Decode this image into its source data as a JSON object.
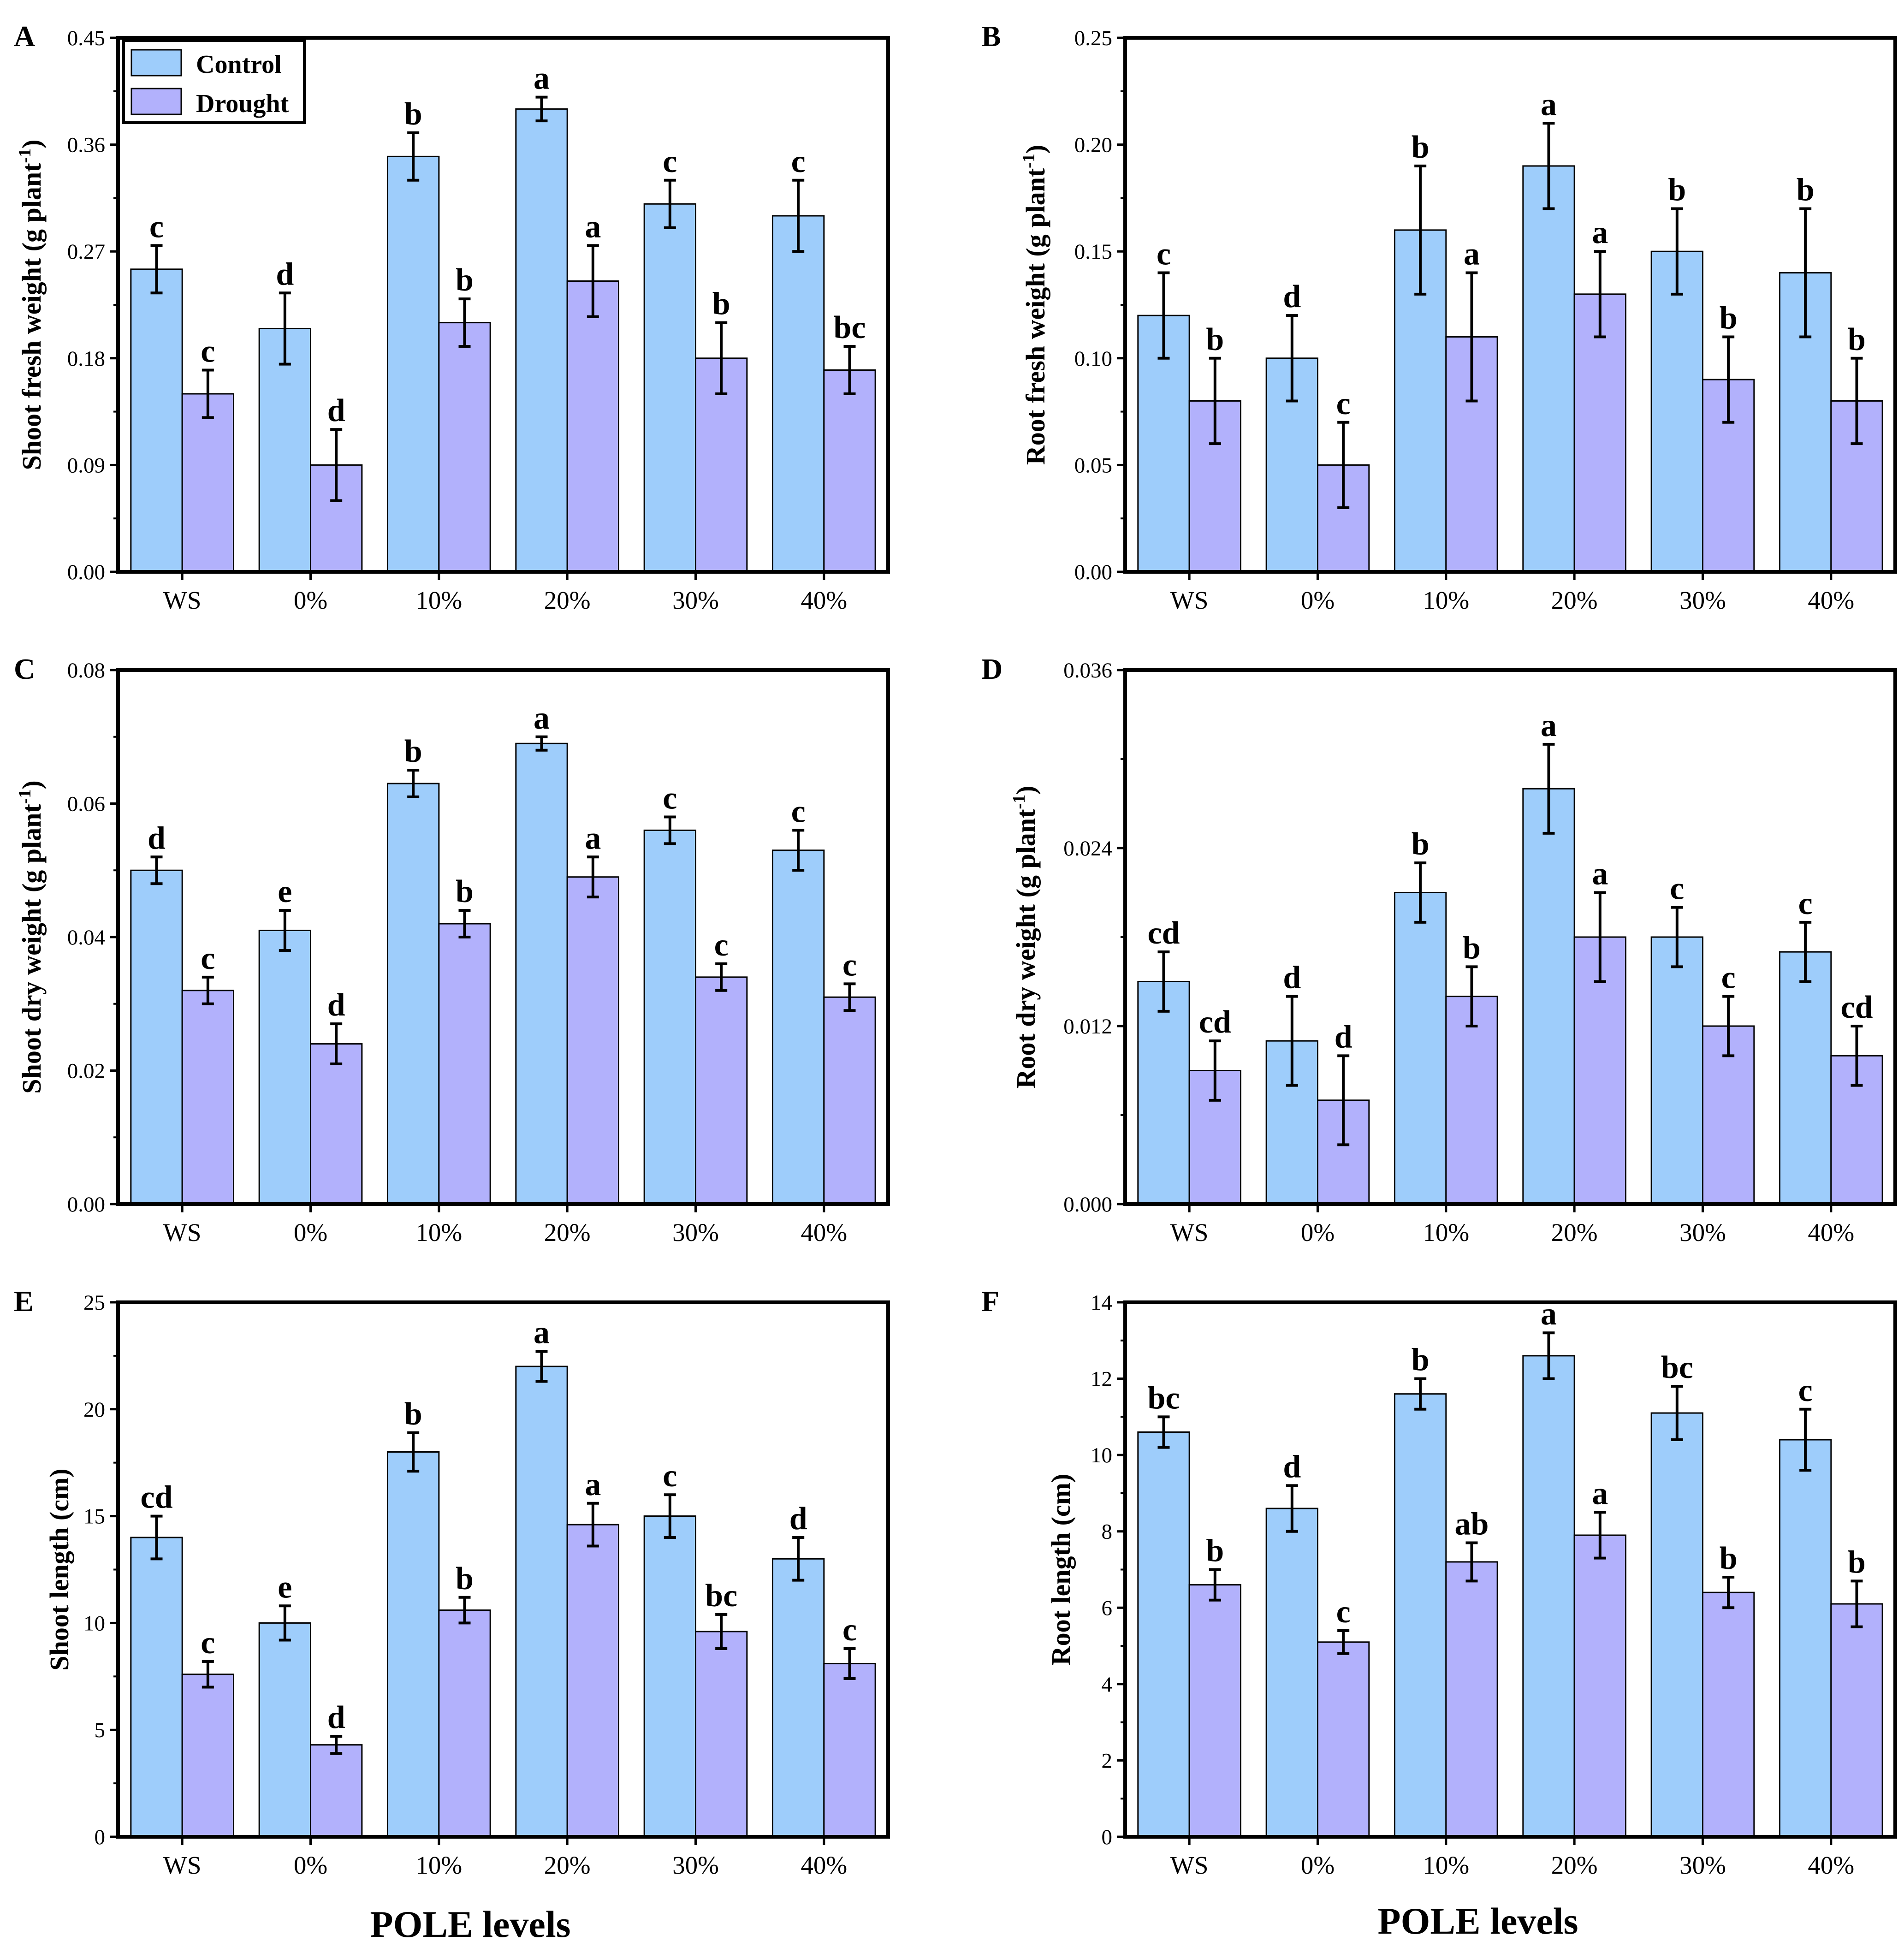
{
  "colors": {
    "control": "#9ecdfb",
    "drought": "#b2b1fc",
    "axis": "#000000"
  },
  "legend": {
    "control_label": "Control",
    "drought_label": "Drought"
  },
  "x_axis_title": "POLE levels",
  "chart_data": [
    {
      "panel": "A",
      "type": "bar",
      "title": "",
      "ylabel": "Shoot fresh weight (g plant-1)",
      "ylabel_parts": [
        "Shoot fresh weight (g plant",
        "-1",
        ")"
      ],
      "xlabel": "",
      "categories": [
        "WS",
        "0%",
        "10%",
        "20%",
        "30%",
        "40%"
      ],
      "ylim": [
        0,
        0.45
      ],
      "yticks": [
        "0.00",
        "0.09",
        "0.18",
        "0.27",
        "0.36",
        "0.45"
      ],
      "series": [
        {
          "name": "Control",
          "values": [
            0.255,
            0.205,
            0.35,
            0.39,
            0.31,
            0.3
          ],
          "errors": [
            0.02,
            0.03,
            0.02,
            0.01,
            0.02,
            0.03
          ],
          "letters": [
            "c",
            "d",
            "b",
            "a",
            "c",
            "c"
          ]
        },
        {
          "name": "Drought",
          "values": [
            0.15,
            0.09,
            0.21,
            0.245,
            0.18,
            0.17
          ],
          "errors": [
            0.02,
            0.03,
            0.02,
            0.03,
            0.03,
            0.02
          ],
          "letters": [
            "c",
            "d",
            "b",
            "a",
            "b",
            "bc"
          ]
        }
      ],
      "legend_position": "top-left"
    },
    {
      "panel": "B",
      "type": "bar",
      "title": "",
      "ylabel": "Root fresh weight (g plant-1)",
      "ylabel_parts": [
        "Root fresh weight (g plant",
        "-1",
        ")"
      ],
      "xlabel": "",
      "categories": [
        "WS",
        "0%",
        "10%",
        "20%",
        "30%",
        "40%"
      ],
      "ylim": [
        0,
        0.25
      ],
      "yticks": [
        "0.00",
        "0.05",
        "0.10",
        "0.15",
        "0.20",
        "0.25"
      ],
      "series": [
        {
          "name": "Control",
          "values": [
            0.12,
            0.1,
            0.16,
            0.19,
            0.15,
            0.14
          ],
          "errors": [
            0.02,
            0.02,
            0.03,
            0.02,
            0.02,
            0.03
          ],
          "letters": [
            "c",
            "d",
            "b",
            "a",
            "b",
            "b"
          ]
        },
        {
          "name": "Drought",
          "values": [
            0.08,
            0.05,
            0.11,
            0.13,
            0.09,
            0.08
          ],
          "errors": [
            0.02,
            0.02,
            0.03,
            0.02,
            0.02,
            0.02
          ],
          "letters": [
            "b",
            "c",
            "a",
            "a",
            "b",
            "b"
          ]
        }
      ]
    },
    {
      "panel": "C",
      "type": "bar",
      "title": "",
      "ylabel": "Shoot dry weight (g plant-1)",
      "ylabel_parts": [
        "Shoot dry weight (g plant",
        "-1",
        ")"
      ],
      "xlabel": "",
      "categories": [
        "WS",
        "0%",
        "10%",
        "20%",
        "30%",
        "40%"
      ],
      "ylim": [
        0,
        0.08
      ],
      "yticks": [
        "0.00",
        "0.02",
        "0.04",
        "0.06",
        "0.08"
      ],
      "series": [
        {
          "name": "Control",
          "values": [
            0.05,
            0.041,
            0.063,
            0.069,
            0.056,
            0.053
          ],
          "errors": [
            0.002,
            0.003,
            0.002,
            0.001,
            0.002,
            0.003
          ],
          "letters": [
            "d",
            "e",
            "b",
            "a",
            "c",
            "c"
          ]
        },
        {
          "name": "Drought",
          "values": [
            0.032,
            0.024,
            0.042,
            0.049,
            0.034,
            0.031
          ],
          "errors": [
            0.002,
            0.003,
            0.002,
            0.003,
            0.002,
            0.002
          ],
          "letters": [
            "c",
            "d",
            "b",
            "a",
            "c",
            "c"
          ]
        }
      ]
    },
    {
      "panel": "D",
      "type": "bar",
      "title": "",
      "ylabel": "Root dry weight (g plant-1)",
      "ylabel_parts": [
        "Root dry weight (g plant",
        "-1",
        ")"
      ],
      "xlabel": "",
      "categories": [
        "WS",
        "0%",
        "10%",
        "20%",
        "30%",
        "40%"
      ],
      "ylim": [
        0,
        0.036
      ],
      "yticks": [
        "0.000",
        "0.012",
        "0.024",
        "0.036"
      ],
      "series": [
        {
          "name": "Control",
          "values": [
            0.015,
            0.011,
            0.021,
            0.028,
            0.018,
            0.017
          ],
          "errors": [
            0.002,
            0.003,
            0.002,
            0.003,
            0.002,
            0.002
          ],
          "letters": [
            "cd",
            "d",
            "b",
            "a",
            "c",
            "c"
          ]
        },
        {
          "name": "Drought",
          "values": [
            0.009,
            0.007,
            0.014,
            0.018,
            0.012,
            0.01
          ],
          "errors": [
            0.002,
            0.003,
            0.002,
            0.003,
            0.002,
            0.002
          ],
          "letters": [
            "cd",
            "d",
            "b",
            "a",
            "c",
            "cd"
          ]
        }
      ]
    },
    {
      "panel": "E",
      "type": "bar",
      "title": "",
      "ylabel": "Shoot length (cm)",
      "ylabel_parts": [
        "Shoot length (cm)",
        "",
        ""
      ],
      "xlabel": "POLE levels",
      "categories": [
        "WS",
        "0%",
        "10%",
        "20%",
        "30%",
        "40%"
      ],
      "ylim": [
        0,
        25
      ],
      "yticks": [
        "0",
        "5",
        "10",
        "15",
        "20",
        "25"
      ],
      "series": [
        {
          "name": "Control",
          "values": [
            14,
            10,
            18,
            22,
            15,
            13
          ],
          "errors": [
            1.0,
            0.8,
            0.9,
            0.7,
            1.0,
            1.0
          ],
          "letters": [
            "cd",
            "e",
            "b",
            "a",
            "c",
            "d"
          ]
        },
        {
          "name": "Drought",
          "values": [
            7.6,
            4.3,
            10.6,
            14.6,
            9.6,
            8.1
          ],
          "errors": [
            0.6,
            0.4,
            0.6,
            1.0,
            0.8,
            0.7
          ],
          "letters": [
            "c",
            "d",
            "b",
            "a",
            "bc",
            "c"
          ]
        }
      ]
    },
    {
      "panel": "F",
      "type": "bar",
      "title": "",
      "ylabel": "Root length (cm)",
      "ylabel_parts": [
        "Root length (cm)",
        "",
        ""
      ],
      "xlabel": "POLE levels",
      "categories": [
        "WS",
        "0%",
        "10%",
        "20%",
        "30%",
        "40%"
      ],
      "ylim": [
        0,
        14
      ],
      "yticks": [
        "0",
        "2",
        "4",
        "6",
        "8",
        "10",
        "12",
        "14"
      ],
      "series": [
        {
          "name": "Control",
          "values": [
            10.6,
            8.6,
            11.6,
            12.6,
            11.1,
            10.4
          ],
          "errors": [
            0.4,
            0.6,
            0.4,
            0.6,
            0.7,
            0.8
          ],
          "letters": [
            "bc",
            "d",
            "b",
            "a",
            "bc",
            "c"
          ]
        },
        {
          "name": "Drought",
          "values": [
            6.6,
            5.1,
            7.2,
            7.9,
            6.4,
            6.1
          ],
          "errors": [
            0.4,
            0.3,
            0.5,
            0.6,
            0.4,
            0.6
          ],
          "letters": [
            "b",
            "c",
            "ab",
            "a",
            "b",
            "b"
          ]
        }
      ]
    }
  ]
}
